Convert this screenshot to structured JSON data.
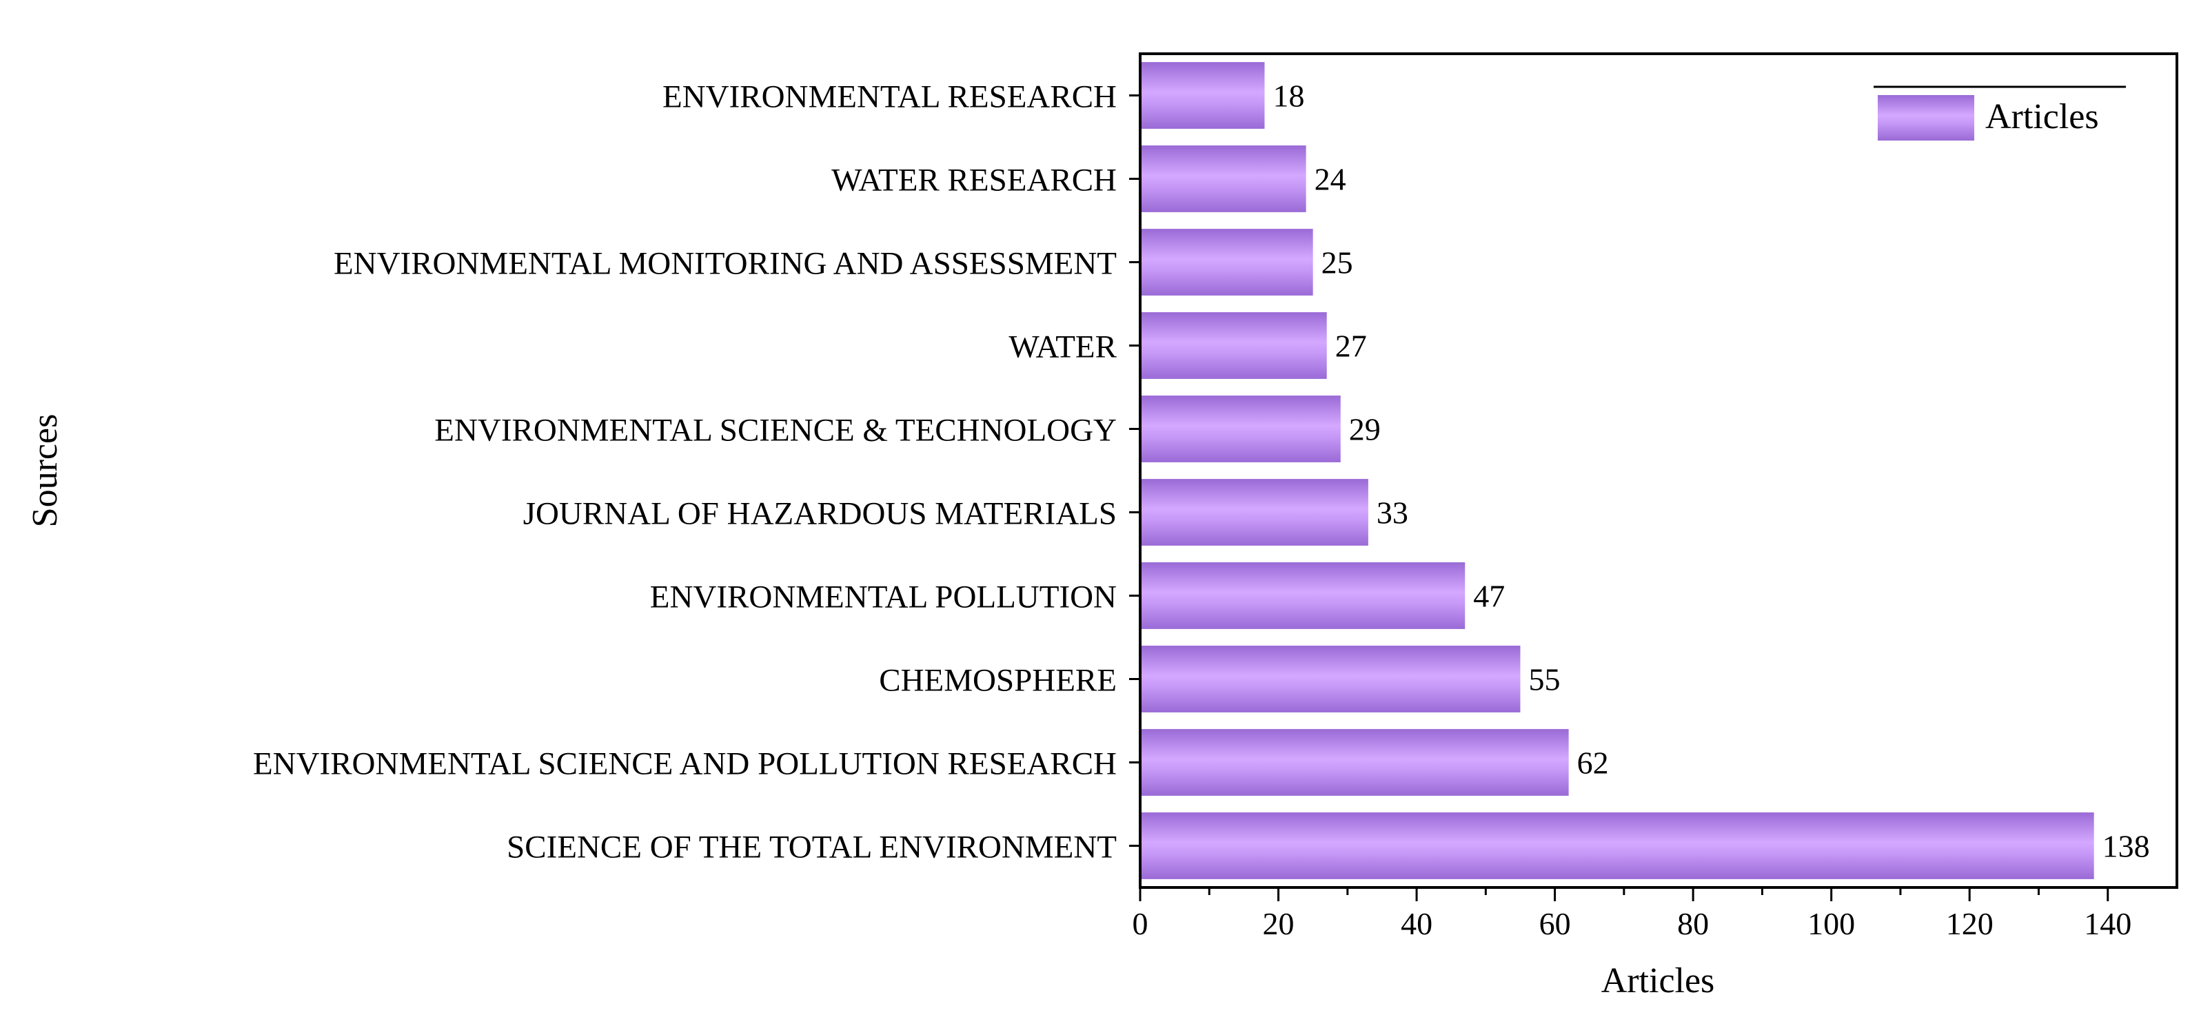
{
  "chart_data": {
    "type": "bar",
    "orientation": "horizontal",
    "categories": [
      "ENVIRONMENTAL RESEARCH",
      "WATER RESEARCH",
      "ENVIRONMENTAL MONITORING AND ASSESSMENT",
      "WATER",
      "ENVIRONMENTAL SCIENCE & TECHNOLOGY",
      "JOURNAL OF HAZARDOUS MATERIALS",
      "ENVIRONMENTAL POLLUTION",
      "CHEMOSPHERE",
      "ENVIRONMENTAL SCIENCE AND POLLUTION RESEARCH",
      "SCIENCE OF THE TOTAL ENVIRONMENT"
    ],
    "series": [
      {
        "name": "Articles",
        "values": [
          18,
          24,
          25,
          27,
          29,
          33,
          47,
          55,
          62,
          138
        ]
      }
    ],
    "xlabel": "Articles",
    "ylabel": "Sources",
    "xlim": [
      0,
      150
    ],
    "xticks": [
      0,
      20,
      40,
      60,
      80,
      100,
      120,
      140
    ],
    "grid": false,
    "legend": {
      "position": "top-right",
      "label": "Articles"
    },
    "colors": {
      "bar_light": "#d4a8ff",
      "bar_dark": "#9a6ad6",
      "axis": "#000000"
    }
  }
}
